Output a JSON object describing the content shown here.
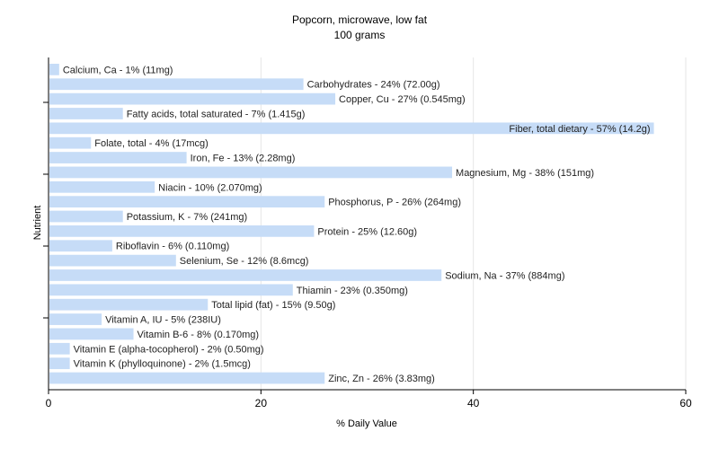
{
  "chart_data": {
    "type": "bar",
    "orientation": "horizontal",
    "title": "Popcorn, microwave, low fat",
    "subtitle": "100 grams",
    "xlabel": "% Daily Value",
    "ylabel": "Nutrient",
    "xlim": [
      0,
      60
    ],
    "xticks": [
      0,
      20,
      40,
      60
    ],
    "grid": true,
    "bar_color": "#c6dcf7",
    "categories": [
      "Calcium, Ca - 1% (11mg)",
      "Carbohydrates - 24% (72.00g)",
      "Copper, Cu - 27% (0.545mg)",
      "Fatty acids, total saturated - 7% (1.415g)",
      "Fiber, total dietary - 57% (14.2g)",
      "Folate, total - 4% (17mcg)",
      "Iron, Fe - 13% (2.28mg)",
      "Magnesium, Mg - 38% (151mg)",
      "Niacin - 10% (2.070mg)",
      "Phosphorus, P - 26% (264mg)",
      "Potassium, K - 7% (241mg)",
      "Protein - 25% (12.60g)",
      "Riboflavin - 6% (0.110mg)",
      "Selenium, Se - 12% (8.6mcg)",
      "Sodium, Na - 37% (884mg)",
      "Thiamin - 23% (0.350mg)",
      "Total lipid (fat) - 15% (9.50g)",
      "Vitamin A, IU - 5% (238IU)",
      "Vitamin B-6 - 8% (0.170mg)",
      "Vitamin E (alpha-tocopherol) - 2% (0.50mg)",
      "Vitamin K (phylloquinone) - 2% (1.5mcg)",
      "Zinc, Zn - 26% (3.83mg)"
    ],
    "values": [
      1,
      24,
      27,
      7,
      57,
      4,
      13,
      38,
      10,
      26,
      7,
      25,
      6,
      12,
      37,
      23,
      15,
      5,
      8,
      2,
      2,
      26
    ]
  }
}
